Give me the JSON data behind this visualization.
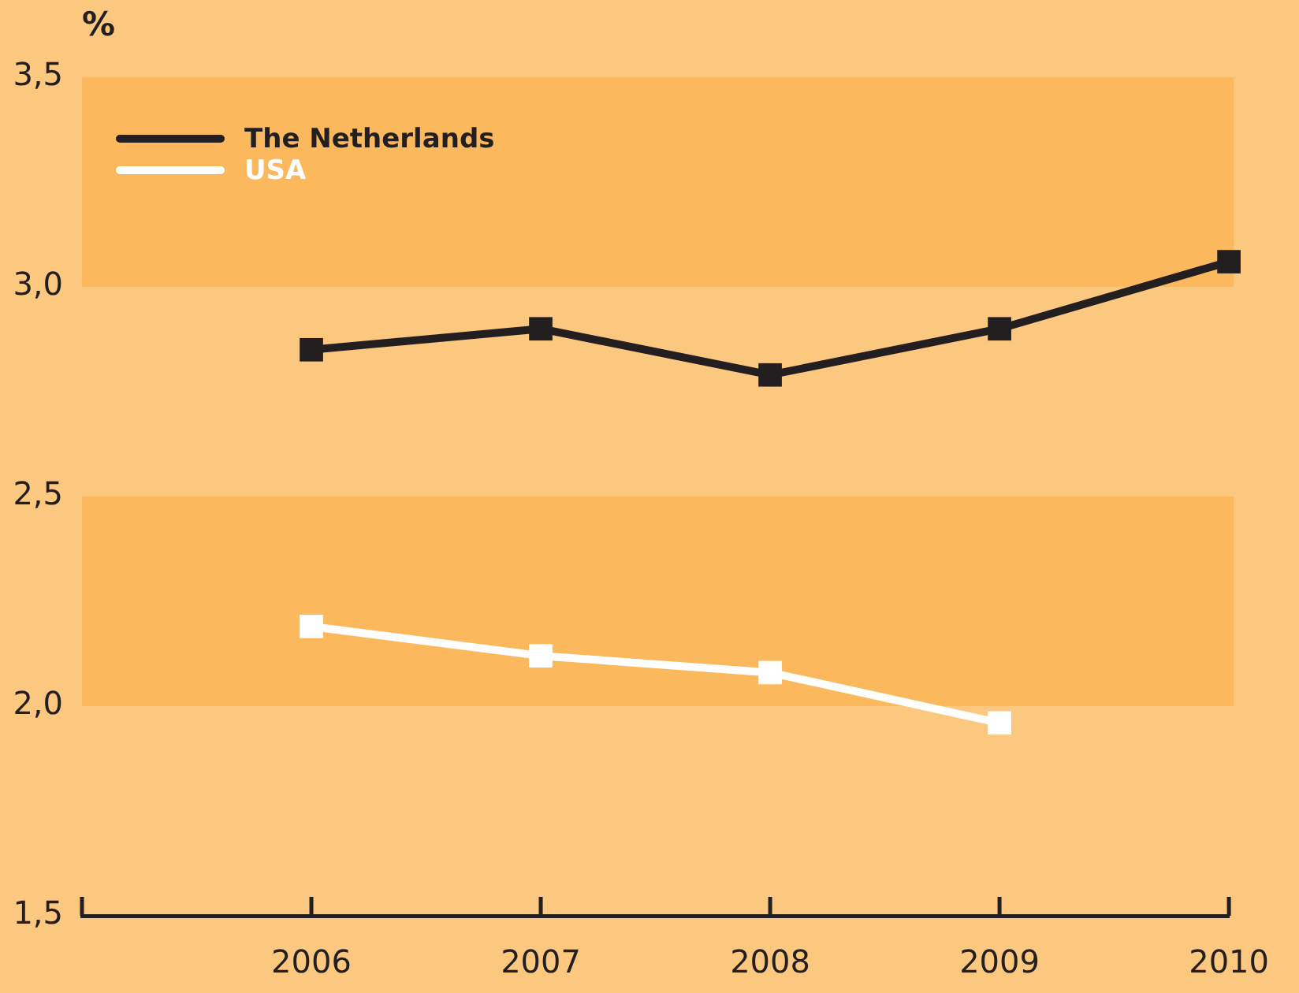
{
  "chart_data": {
    "type": "line",
    "ylabel": "%",
    "x": [
      2006,
      2007,
      2008,
      2009,
      2010
    ],
    "series": [
      {
        "name": "The Netherlands",
        "color": "#231f20",
        "values": [
          2.85,
          2.9,
          2.79,
          2.9,
          3.06
        ]
      },
      {
        "name": "USA",
        "color": "#ffffff",
        "values": [
          2.19,
          2.12,
          2.08,
          1.96,
          null
        ]
      }
    ],
    "xlim": [
      2005,
      2010
    ],
    "xticks": [
      {
        "value": 2005,
        "label": null
      },
      2006,
      2007,
      2008,
      2009,
      2010
    ],
    "ylim": [
      1.5,
      3.5
    ],
    "yticks": [
      {
        "value": 1.5,
        "label": "1,5"
      },
      {
        "value": 2.0,
        "label": "2,0"
      },
      {
        "value": 2.5,
        "label": "2,5"
      },
      {
        "value": 3.0,
        "label": "3,0"
      },
      {
        "value": 3.5,
        "label": "3,5"
      }
    ],
    "bands": [
      {
        "axis": "y",
        "from": 3.0,
        "to": 3.5,
        "color": "#fbb85d"
      },
      {
        "axis": "y",
        "from": 2.0,
        "to": 2.5,
        "color": "#fbb85d"
      }
    ],
    "legend": "top left",
    "marker": "square",
    "line_style": "solid"
  }
}
